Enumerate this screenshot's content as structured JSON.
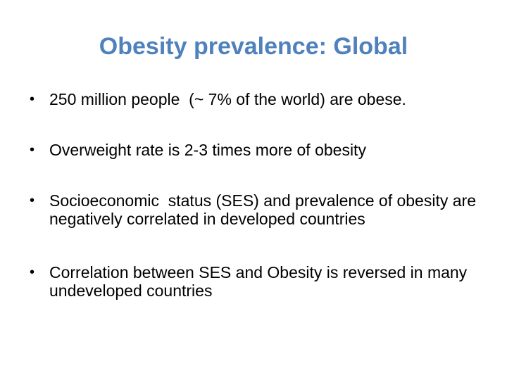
{
  "slide": {
    "title": "Obesity prevalence: Global",
    "bullet_symbol": "•",
    "bullets": [
      "250 million people  (~ 7% of the world) are obese.",
      "Overweight rate is 2-3 times more of obesity",
      "Socioeconomic  status (SES) and prevalence of obesity are negatively correlated in developed countries",
      "Correlation between SES and Obesity is reversed in many undeveloped countries"
    ]
  },
  "colors": {
    "title": "#4f81bd",
    "text": "#000000",
    "background": "#ffffff"
  }
}
